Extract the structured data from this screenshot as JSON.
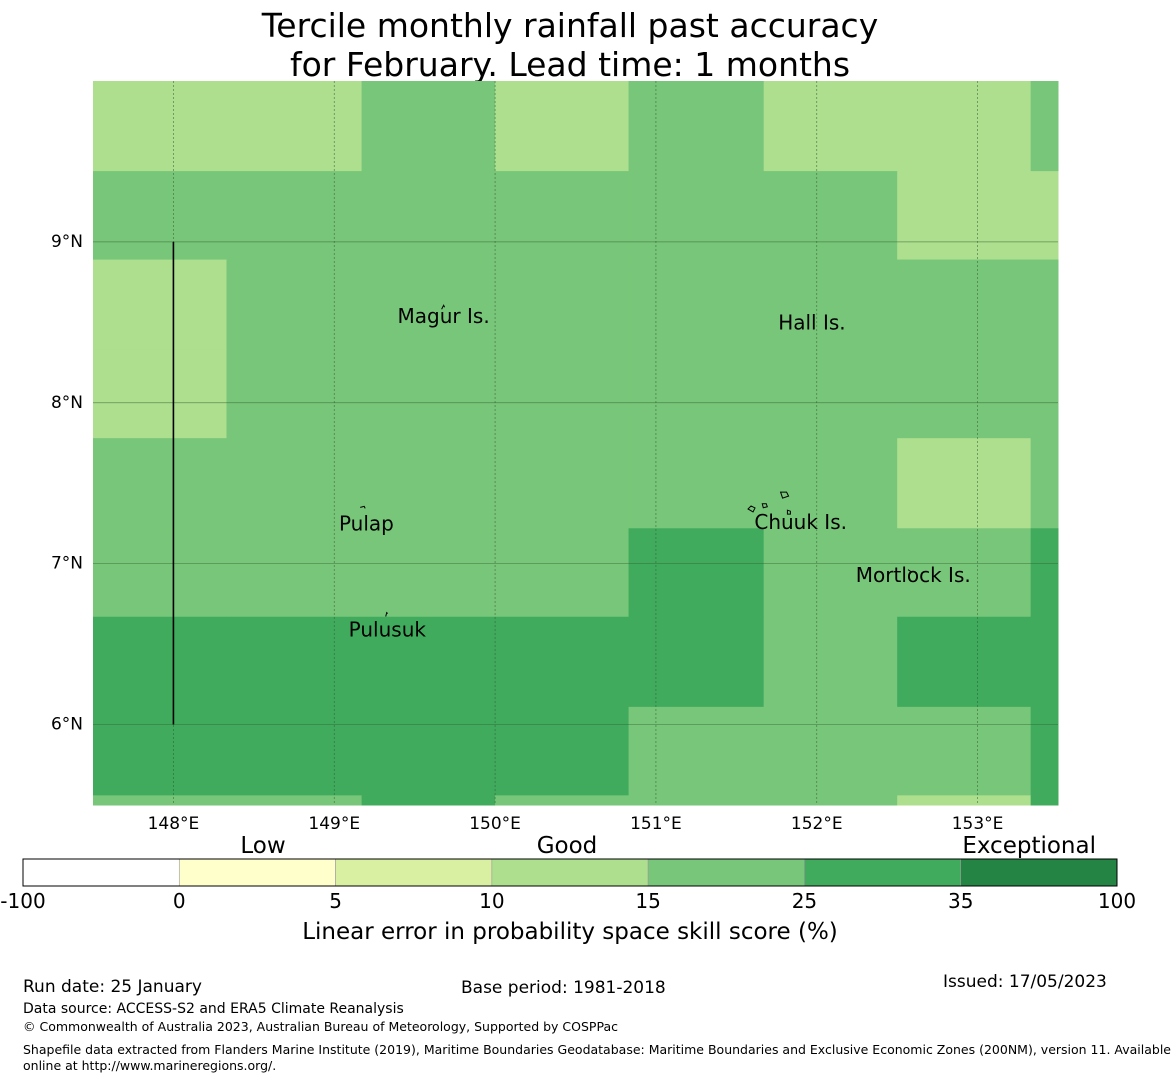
{
  "title": {
    "line1": "Tercile monthly rainfall past accuracy",
    "line2": "for February. Lead time: 1 months"
  },
  "map": {
    "lat_range": [
      5.5,
      10.0
    ],
    "lon_range": [
      147.5,
      153.5
    ],
    "lat_ticks": [
      {
        "value": 9,
        "label": "9°N"
      },
      {
        "value": 8,
        "label": "8°N"
      },
      {
        "value": 7,
        "label": "7°N"
      },
      {
        "value": 6,
        "label": "6°N"
      }
    ],
    "lon_ticks": [
      {
        "value": 148,
        "label": "148°E"
      },
      {
        "value": 149,
        "label": "149°E"
      },
      {
        "value": 150,
        "label": "150°E"
      },
      {
        "value": 151,
        "label": "151°E"
      },
      {
        "value": 152,
        "label": "152°E"
      },
      {
        "value": 153,
        "label": "153°E"
      }
    ],
    "grid_colors": {
      "c15": "#addf8e",
      "c25": "#78c679",
      "c35": "#41ab5d"
    },
    "grid_lon_edges": [
      147.5,
      148.33,
      149.17,
      150.0,
      150.83,
      151.67,
      152.5,
      153.33,
      153.5
    ],
    "grid_lat_edges": [
      10.0,
      9.44,
      8.89,
      8.33,
      7.78,
      7.22,
      6.67,
      6.11,
      5.56,
      5.5
    ],
    "grid_cells": [
      [
        "c15",
        "c15",
        "c25",
        "c15",
        "c25",
        "c15",
        "c15",
        "c25"
      ],
      [
        "c25",
        "c25",
        "c25",
        "c25",
        "c25",
        "c25",
        "c15",
        "c15"
      ],
      [
        "c15",
        "c25",
        "c25",
        "c25",
        "c25",
        "c25",
        "c25",
        "c25"
      ],
      [
        "c15",
        "c25",
        "c25",
        "c25",
        "c25",
        "c25",
        "c25",
        "c25"
      ],
      [
        "c25",
        "c25",
        "c25",
        "c25",
        "c25",
        "c25",
        "c15",
        "c25"
      ],
      [
        "c25",
        "c25",
        "c25",
        "c25",
        "c35",
        "c25",
        "c25",
        "c35"
      ],
      [
        "c35",
        "c35",
        "c35",
        "c35",
        "c35",
        "c25",
        "c35",
        "c35"
      ],
      [
        "c35",
        "c35",
        "c35",
        "c35",
        "c25",
        "c25",
        "c25",
        "c35"
      ],
      [
        "c25",
        "c25",
        "c35",
        "c25",
        "c25",
        "c25",
        "c15",
        "c35"
      ]
    ],
    "places": [
      {
        "name": "Magur Is.",
        "lon": 149.68,
        "lat": 8.53
      },
      {
        "name": "Hall Is.",
        "lon": 151.97,
        "lat": 8.49
      },
      {
        "name": "Pulap",
        "lon": 149.2,
        "lat": 7.24
      },
      {
        "name": "Chuuk Is.",
        "lon": 151.9,
        "lat": 7.25
      },
      {
        "name": "Mortlock Is.",
        "lon": 152.6,
        "lat": 6.92
      },
      {
        "name": "Pulusuk",
        "lon": 149.33,
        "lat": 6.58
      }
    ],
    "boundary_line": {
      "lon": 148.0,
      "lat_from": 6.0,
      "lat_to": 9.0
    }
  },
  "colorbar": {
    "ticks": [
      "-100",
      "0",
      "5",
      "10",
      "15",
      "25",
      "35",
      "100"
    ],
    "colors": [
      "#ffffff",
      "#ffffcc",
      "#d9f0a3",
      "#addf8e",
      "#78c679",
      "#41ab5d",
      "#238443"
    ],
    "category_labels": [
      "Low",
      "Good",
      "Exceptional"
    ],
    "label": "Linear error in probability space skill score (%)"
  },
  "footer": {
    "run_date": "Run date: 25 January",
    "base_period": "Base period: 1981-2018",
    "issued": "Issued: 17/05/2023",
    "data_source": "Data source: ACCESS-S2 and ERA5 Climate Reanalysis",
    "copyright": "© Commonwealth of Australia 2023, Australian Bureau of Meteorology, Supported by COSPPac",
    "shapefile_line1": "Shapefile data extracted from Flanders Marine Institute (2019), Maritime Boundaries Geodatabase: Maritime Boundaries and Exclusive Economic Zones (200NM), version 11. Available",
    "shapefile_line2": "online at http://www.marineregions.org/."
  }
}
